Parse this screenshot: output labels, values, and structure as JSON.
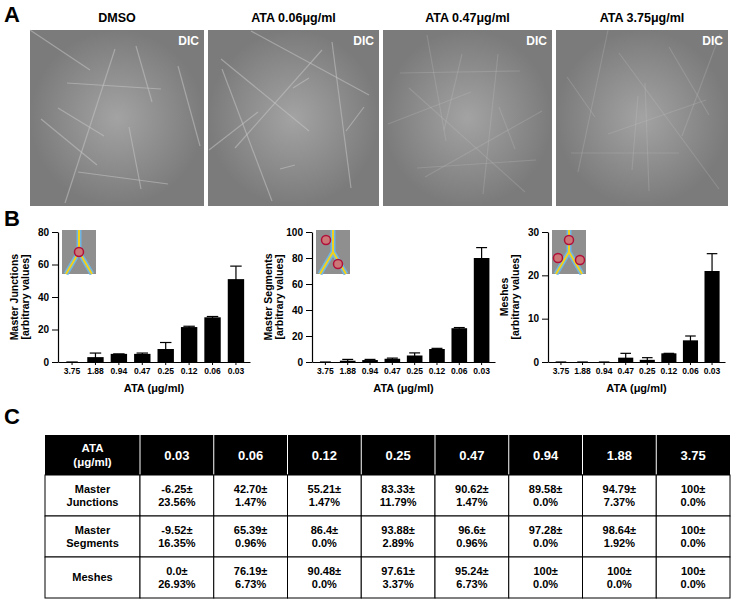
{
  "panel_labels": [
    "A",
    "B",
    "C"
  ],
  "images": [
    {
      "title": "DMSO",
      "label": "DIC"
    },
    {
      "title": "ATA 0.06μg/ml",
      "label": "DIC"
    },
    {
      "title": "ATA 0.47μg/ml",
      "label": "DIC"
    },
    {
      "title": "ATA 3.75μg/ml",
      "label": "DIC"
    }
  ],
  "chart_data": [
    {
      "type": "bar",
      "y_label": [
        "Master Junctions",
        "[arbitrary values]"
      ],
      "x_label": "ATA (μg/ml)",
      "categories": [
        "3.75",
        "1.88",
        "0.94",
        "0.47",
        "0.25",
        "0.12",
        "0.06",
        "0.03"
      ],
      "values": [
        0,
        3,
        5,
        5,
        8,
        21.5,
        27.5,
        51
      ],
      "errors": [
        0,
        2.5,
        0,
        0.5,
        4,
        0.5,
        0.5,
        8
      ],
      "color": "#000000",
      "ylim": [
        0,
        80
      ],
      "yticks": [
        0,
        20,
        40,
        60,
        80
      ]
    },
    {
      "type": "bar",
      "y_label": [
        "Master Segments",
        "[arbitrary values]"
      ],
      "x_label": "ATA (μg/ml)",
      "categories": [
        "3.75",
        "1.88",
        "0.94",
        "0.47",
        "0.25",
        "0.12",
        "0.06",
        "0.03"
      ],
      "values": [
        0,
        1,
        1.5,
        2.5,
        5,
        10,
        26,
        80
      ],
      "errors": [
        0,
        1,
        0.5,
        0.5,
        2,
        0.5,
        0.5,
        8
      ],
      "color": "#000000",
      "ylim": [
        0,
        100
      ],
      "yticks": [
        0,
        20,
        40,
        60,
        80,
        100
      ]
    },
    {
      "type": "bar",
      "y_label": [
        "Meshes",
        "[arbitrary values]"
      ],
      "x_label": "ATA (μg/ml)",
      "categories": [
        "3.75",
        "1.88",
        "0.94",
        "0.47",
        "0.25",
        "0.12",
        "0.06",
        "0.03"
      ],
      "values": [
        0,
        0,
        0,
        1,
        0.5,
        2,
        5,
        21
      ],
      "errors": [
        0,
        0,
        0,
        1,
        0.5,
        0,
        1,
        4
      ],
      "color": "#000000",
      "ylim": [
        0,
        30
      ],
      "yticks": [
        0,
        10,
        20,
        30
      ]
    }
  ],
  "table": {
    "header": [
      [
        "ATA",
        "(μg/ml)"
      ],
      [
        "0.03"
      ],
      [
        "0.06"
      ],
      [
        "0.12"
      ],
      [
        "0.25"
      ],
      [
        "0.47"
      ],
      [
        "0.94"
      ],
      [
        "1.88"
      ],
      [
        "3.75"
      ]
    ],
    "rows": [
      [
        [
          "Master",
          "Junctions"
        ],
        [
          "-6.25±",
          "23.56%"
        ],
        [
          "42.70±",
          "1.47%"
        ],
        [
          "55.21±",
          "1.47%"
        ],
        [
          "83.33±",
          "11.79%"
        ],
        [
          "90.62±",
          "1.47%"
        ],
        [
          "89.58±",
          "0.0%"
        ],
        [
          "94.79±",
          "7.37%"
        ],
        [
          "100±",
          "0.0%"
        ]
      ],
      [
        [
          "Master",
          "Segments"
        ],
        [
          "-9.52±",
          "16.35%"
        ],
        [
          "65.39±",
          "0.96%"
        ],
        [
          "86.4±",
          "0.0%"
        ],
        [
          "93.88±",
          "2.89%"
        ],
        [
          "96.6±",
          "0.96%"
        ],
        [
          "97.28±",
          "0.0%"
        ],
        [
          "98.64±",
          "1.92%"
        ],
        [
          "100±",
          "0.0%"
        ]
      ],
      [
        [
          "Meshes"
        ],
        [
          "0.0±",
          "26.93%"
        ],
        [
          "76.19±",
          "6.73%"
        ],
        [
          "90.48±",
          "0.0%"
        ],
        [
          "97.61±",
          "3.37%"
        ],
        [
          "95.24±",
          "6.73%"
        ],
        [
          "100±",
          "0.0%"
        ],
        [
          "100±",
          "0.0%"
        ],
        [
          "100±",
          "0.0%"
        ]
      ]
    ]
  }
}
